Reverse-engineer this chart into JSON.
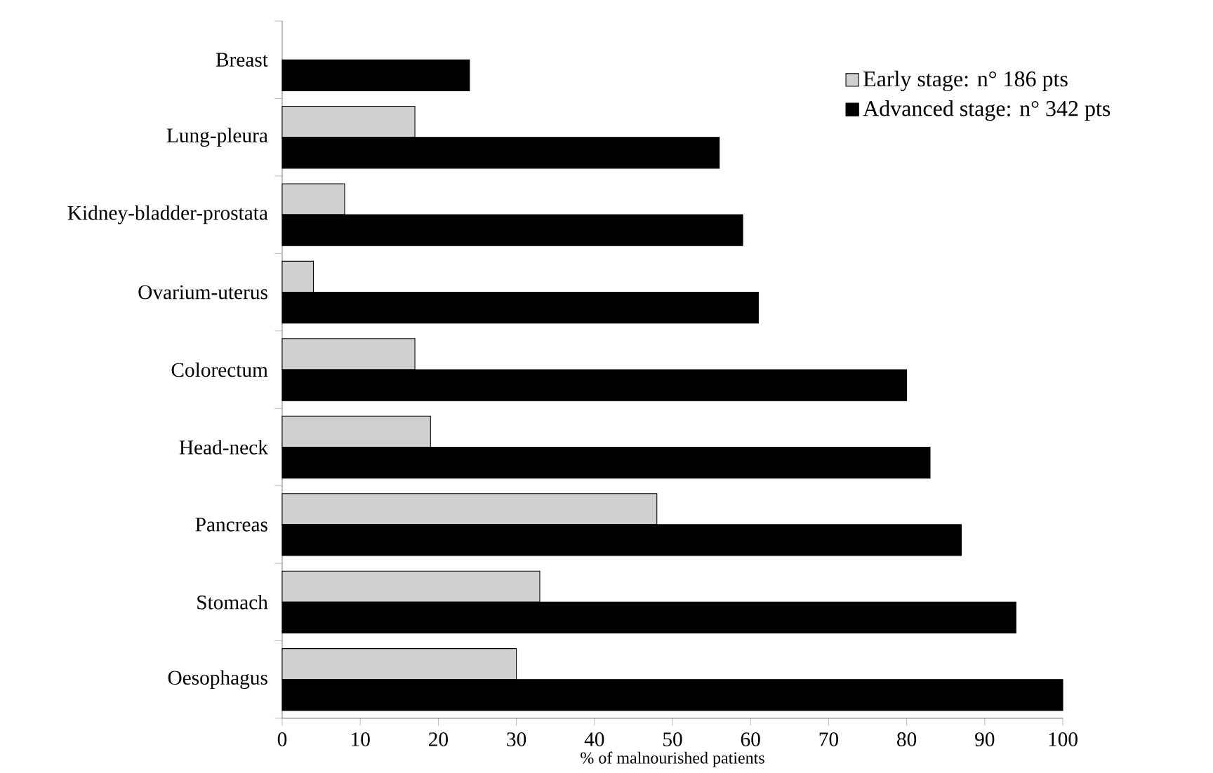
{
  "chart_data": {
    "type": "bar",
    "orientation": "horizontal",
    "xlabel": "% of malnourished patients",
    "categories": [
      "Breast",
      "Lung-pleura",
      "Kidney-bladder-prostata",
      "Ovarium-uterus",
      "Colorectum",
      "Head-neck",
      "Pancreas",
      "Stomach",
      "Oesophagus"
    ],
    "series": [
      {
        "name": "Early stage: n° 186 pts",
        "color": "#d0d0d0",
        "values": [
          null,
          17,
          8,
          4,
          17,
          19,
          48,
          33,
          30
        ]
      },
      {
        "name": "Advanced stage: n° 342 pts",
        "color": "#000000",
        "values": [
          24,
          56,
          59,
          61,
          80,
          83,
          87,
          94,
          100
        ]
      }
    ],
    "xlim": [
      0,
      100
    ],
    "xticks": [
      0,
      10,
      20,
      30,
      40,
      50,
      60,
      70,
      80,
      90,
      100
    ],
    "grid": false,
    "legend": "top right"
  }
}
